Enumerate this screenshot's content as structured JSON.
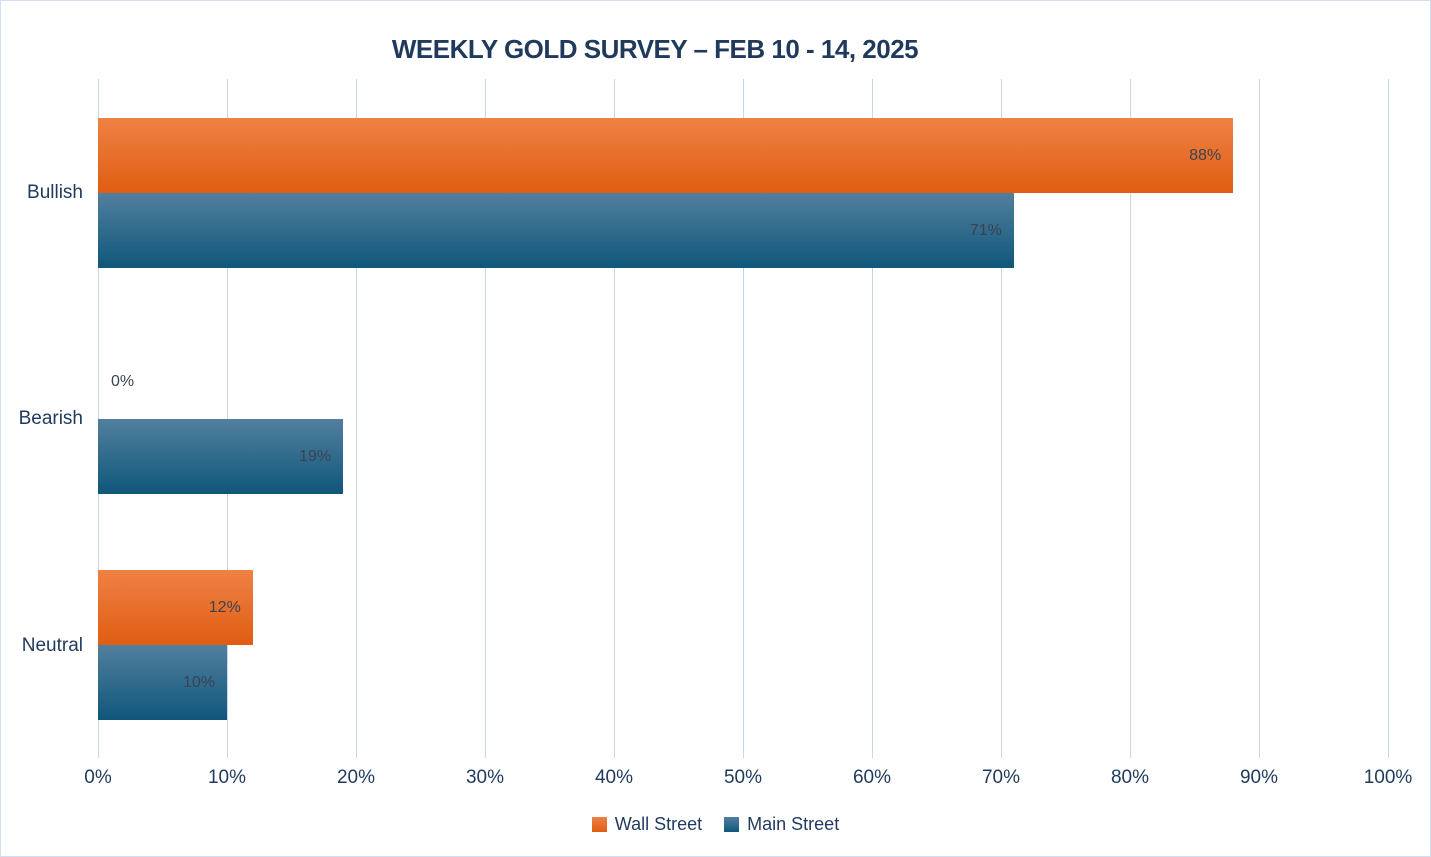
{
  "chart_data": {
    "type": "bar",
    "orientation": "horizontal",
    "title": "WEEKLY GOLD SURVEY – FEB 10 - 14, 2025",
    "categories": [
      "Bullish",
      "Bearish",
      "Neutral"
    ],
    "series": [
      {
        "name": "Wall Street",
        "values": [
          88,
          0,
          12
        ]
      },
      {
        "name": "Main Street",
        "values": [
          71,
          19,
          10
        ]
      }
    ],
    "value_label_suffix": "%",
    "xlabel": "",
    "ylabel": "",
    "xlim": [
      0,
      100
    ],
    "x_tick_labels": [
      "0%",
      "10%",
      "20%",
      "30%",
      "40%",
      "50%",
      "60%",
      "70%",
      "80%",
      "90%",
      "100%"
    ],
    "grid": "vertical",
    "legend_position": "bottom"
  },
  "colors": {
    "wall_street_top": "#ef8145",
    "wall_street_bottom": "#e05d12",
    "main_street_top": "#527f9e",
    "main_street_bottom": "#0f577b",
    "title_text": "#1f3a5c",
    "axis_text": "#1f3a5c",
    "data_label_text": "#3a4352",
    "gridline": "#c7d6ea",
    "background": "#ffffff"
  }
}
